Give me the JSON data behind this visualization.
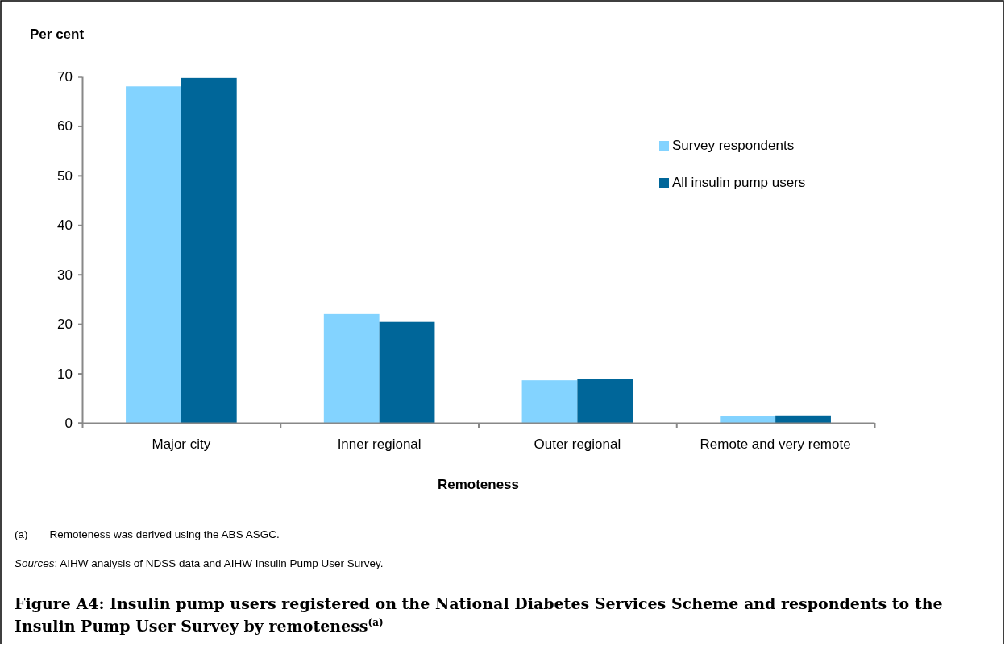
{
  "chart_data": {
    "type": "bar",
    "title": "Figure A4: Insulin pump users registered on the National Diabetes Services Scheme and respondents to the Insulin Pump User Survey by remoteness$^{(a)}$",
    "ylabel": "Per cent",
    "xlabel": "Remoteness",
    "categories": [
      "Major city",
      "Inner regional",
      "Outer regional",
      "Remote and very remote"
    ],
    "series": [
      {
        "name": "Survey respondents",
        "color": "#83d3ff",
        "values": [
          68.0,
          22.0,
          8.6,
          1.3
        ]
      },
      {
        "name": "All insulin pump users",
        "color": "#006699",
        "values": [
          69.7,
          20.4,
          8.9,
          1.5
        ]
      }
    ],
    "ylim": [
      0,
      70
    ],
    "yticks": [
      0,
      10,
      20,
      30,
      40,
      50,
      60,
      70
    ],
    "grid": false,
    "legend": "top right",
    "annotations": [
      "(a)  Remoteness was derived using the ABS ASGC.",
      "Sources: AIHW analysis of NDSS data and AIHW Insulin Pump User Survey."
    ]
  }
}
